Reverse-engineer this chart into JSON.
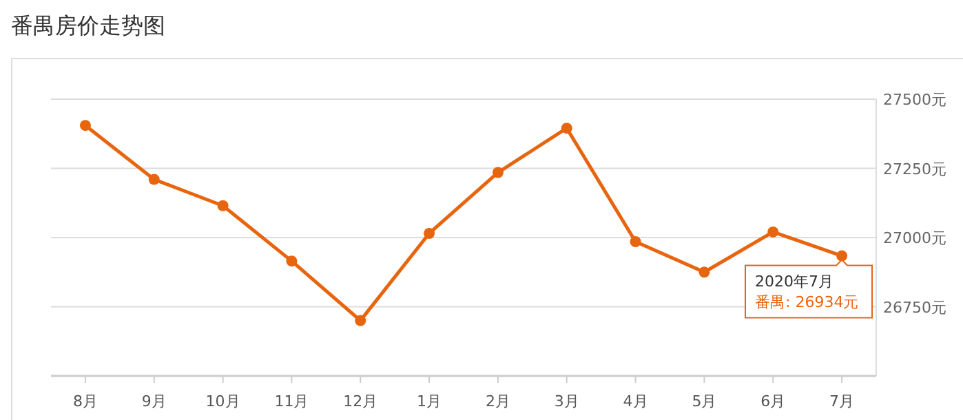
{
  "chart_data": {
    "type": "line",
    "title": "番禺房价走势图",
    "categories": [
      "8月",
      "9月",
      "10月",
      "11月",
      "12月",
      "1月",
      "2月",
      "3月",
      "4月",
      "5月",
      "6月",
      "7月"
    ],
    "series": [
      {
        "color": "#e8650f",
        "values": [
          27405,
          27210,
          27115,
          26915,
          26700,
          27015,
          27235,
          27395,
          26985,
          26875,
          27020,
          26934
        ]
      }
    ],
    "ylim": [
      26500,
      27500
    ],
    "yticks": [
      {
        "value": 26750,
        "label": "26750元"
      },
      {
        "value": 27000,
        "label": "27000元"
      },
      {
        "value": 27250,
        "label": "27250元"
      },
      {
        "value": 27500,
        "label": "27500元"
      }
    ],
    "grid": "y",
    "marker": "circle",
    "line_style": "solid",
    "annotations": [
      {
        "text": "2020年7月",
        "x": "7月",
        "y": 26934
      },
      {
        "text": "番禺: 26934元",
        "x": "7月",
        "y": 26934
      }
    ]
  }
}
